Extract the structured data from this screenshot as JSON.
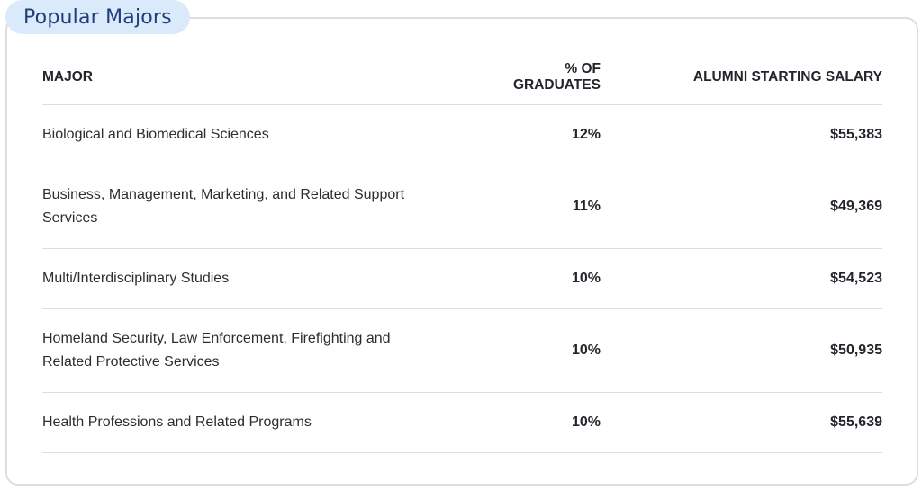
{
  "section": {
    "title": "Popular Majors"
  },
  "table": {
    "columns": [
      "MAJOR",
      "% OF GRADUATES",
      "ALUMNI STARTING SALARY"
    ],
    "rows": [
      {
        "major": "Biological and Biomedical Sciences",
        "percent": "12%",
        "salary": "$55,383"
      },
      {
        "major": "Business, Management, Marketing, and Related Support Services",
        "percent": "11%",
        "salary": "$49,369"
      },
      {
        "major": "Multi/Interdisciplinary Studies",
        "percent": "10%",
        "salary": "$54,523"
      },
      {
        "major": "Homeland Security, Law Enforcement, Firefighting and Related Protective Services",
        "percent": "10%",
        "salary": "$50,935"
      },
      {
        "major": "Health Professions and Related Programs",
        "percent": "10%",
        "salary": "$55,639"
      }
    ]
  },
  "colors": {
    "badge_bg": "#dbeafa",
    "badge_text": "#1f3d7a",
    "border": "#dcdde2"
  }
}
